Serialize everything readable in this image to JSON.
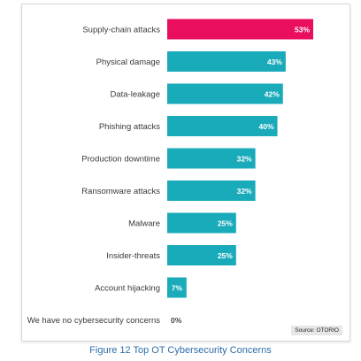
{
  "chart_data": {
    "type": "bar",
    "orientation": "horizontal",
    "categories": [
      "Supply-chain attacks",
      "Physical damage",
      "Data-leakage",
      "Phishing attacks",
      "Production downtime",
      "Ransomware attacks",
      "Malware",
      "Insider-threats",
      "Account hijacking",
      "We have no cybersecurity concerns"
    ],
    "values": [
      53,
      43,
      42,
      40,
      32,
      32,
      25,
      25,
      7,
      0
    ],
    "value_labels": [
      "53%",
      "43%",
      "42%",
      "40%",
      "32%",
      "32%",
      "25%",
      "25%",
      "7%",
      "0%"
    ],
    "unit": "%",
    "xlim": [
      0,
      53
    ],
    "highlight_index": 0,
    "grid": false,
    "legend": "none"
  },
  "colors": {
    "highlight_bar": "#ea0f5e",
    "bar": "#1aabbb",
    "caption": "#2d6ea8"
  },
  "source": "Source: OTORIO",
  "caption": "Figure 12 Top OT Cybersecurity Concerns"
}
